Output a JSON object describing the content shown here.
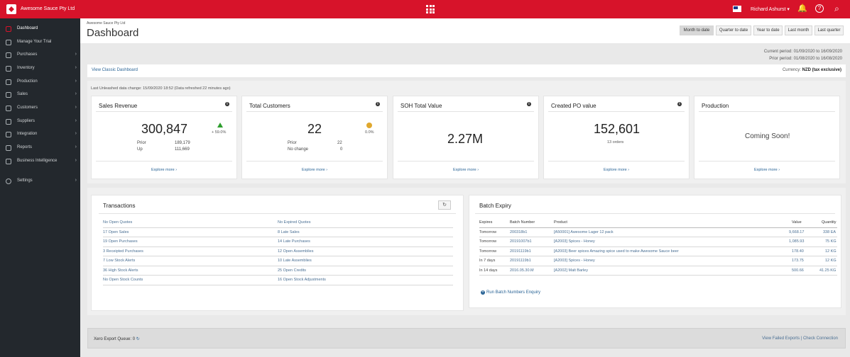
{
  "topbar": {
    "company": "Awesome Sauce Pty Ltd",
    "user": "Richard Ashurst ▾",
    "icons": [
      "apps-grid-icon",
      "flag-icon",
      "bell-icon",
      "help-icon",
      "search-icon"
    ],
    "brand_color": "#d7132a"
  },
  "sidebar": {
    "items": [
      {
        "label": "Dashboard",
        "icon": "dashboard-icon",
        "arrow": ""
      },
      {
        "label": "Manage Your Trial",
        "icon": "rocket-icon",
        "arrow": ""
      },
      {
        "label": "Purchases",
        "icon": "cart-icon",
        "arrow": "›"
      },
      {
        "label": "Inventory",
        "icon": "box-icon",
        "arrow": "›"
      },
      {
        "label": "Production",
        "icon": "factory-icon",
        "arrow": "›"
      },
      {
        "label": "Sales",
        "icon": "tag-icon",
        "arrow": "›"
      },
      {
        "label": "Customers",
        "icon": "users-icon",
        "arrow": "›"
      },
      {
        "label": "Suppliers",
        "icon": "truck-icon",
        "arrow": "›"
      },
      {
        "label": "Integration",
        "icon": "link-icon",
        "arrow": "›"
      },
      {
        "label": "Reports",
        "icon": "report-icon",
        "arrow": "›"
      },
      {
        "label": "Business Intelligence",
        "icon": "chart-icon",
        "arrow": "›"
      },
      {
        "label": "Settings",
        "icon": "gear-icon",
        "arrow": "›"
      }
    ]
  },
  "header": {
    "breadcrumb": "Awesome Sauce Pty Ltd",
    "title": "Dashboard",
    "period_buttons": [
      "Month to date",
      "Quarter to date",
      "Year to date",
      "Last month",
      "Last quarter"
    ],
    "current_period": "Current period: 01/09/2020 to 16/09/2020",
    "prior_period": "Prior period: 01/08/2020 to 16/08/2020"
  },
  "bar": {
    "view_classic": "View Classic Dashboard",
    "currency_label": "Currency:",
    "currency_value": "NZD (tax exclusive)"
  },
  "last_change": "Last Unleashed data change: 15/09/2020 18:52 (Data refreshed 22 minutes ago)",
  "cards": {
    "sales": {
      "title": "Sales Revenue",
      "value": "300,847",
      "change": "+ 59.0%",
      "prior_label": "Prior",
      "prior_value": "189,179",
      "up_label": "Up",
      "up_value": "111,669",
      "explore": "Explore more ›"
    },
    "customers": {
      "title": "Total Customers",
      "value": "22",
      "change": "0.0%",
      "prior_label": "Prior",
      "prior_value": "22",
      "nochange_label": "No change",
      "nochange_value": "0",
      "explore": "Explore more ›"
    },
    "soh": {
      "title": "SOH Total Value",
      "value": "2.27M",
      "explore": "Explore more ›"
    },
    "po": {
      "title": "Created PO value",
      "value": "152,601",
      "sub": "13 orders",
      "explore": "Explore more ›"
    },
    "production": {
      "title": "Production",
      "value": "Coming Soon!",
      "explore": "Explore more ›"
    }
  },
  "transactions": {
    "title": "Transactions",
    "rows": [
      [
        "No Open Quotes",
        "No Expired Quotes"
      ],
      [
        "17 Open Sales",
        "8 Late Sales"
      ],
      [
        "19 Open Purchases",
        "14 Late Purchases"
      ],
      [
        "3 Receipted Purchases",
        "12 Open Assemblies"
      ],
      [
        "7 Low Stock Alerts",
        "10 Late Assemblies"
      ],
      [
        "36 High Stock Alerts",
        "25 Open Credits"
      ],
      [
        "No Open Stock Counts",
        "16 Open Stock Adjustments"
      ]
    ]
  },
  "batch": {
    "title": "Batch Expiry",
    "headers": [
      "Expires",
      "Batch Number",
      "Product",
      "Value",
      "Quantity"
    ],
    "rows": [
      [
        "Tomorrow",
        "200318b1",
        "[A50001] Awesome Lager 12 pack",
        "9,668.17",
        "338 EA"
      ],
      [
        "Tomorrow",
        "20191007b1",
        "[A2003] Spices - Honey",
        "1,085.93",
        "75 KG"
      ],
      [
        "Tomorrow",
        "20191119b1",
        "[A2003] Beer spices Amazing spice used to make Awesome Sauce beer",
        "178.40",
        "12 KG"
      ],
      [
        "In 7 days",
        "20191119b1",
        "[A2003] Spices - Honey",
        "173.75",
        "12 KG"
      ],
      [
        "In 14 days",
        "2016.05.30.M",
        "[A2002] Malt Barley",
        "500.66",
        "41.25 KG"
      ]
    ],
    "run_link": "Run Batch Numbers Enquiry"
  },
  "footer": {
    "xero_queue": "Xero Export Queue: 0",
    "links": "View Failed Exports | Check Connection"
  }
}
